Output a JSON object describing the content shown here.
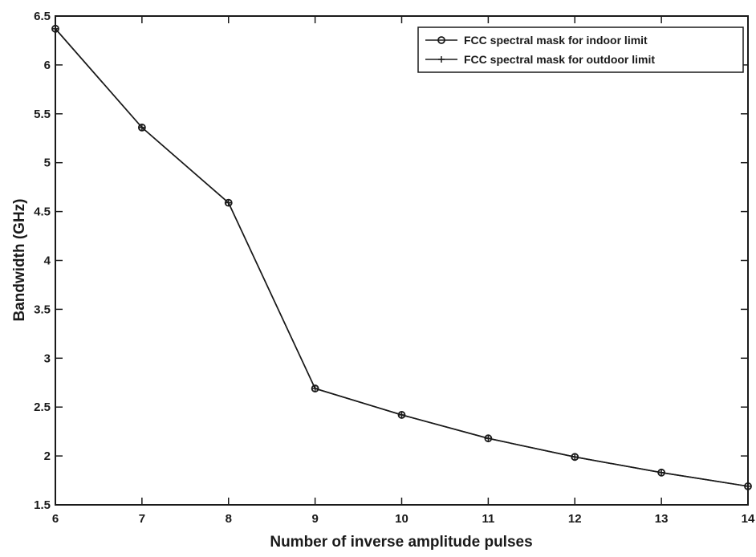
{
  "chart_data": {
    "type": "line",
    "title": "",
    "xlabel": "Number of inverse amplitude pulses",
    "ylabel": "Bandwidth (GHz)",
    "xlim": [
      6,
      14
    ],
    "ylim": [
      1.5,
      6.5
    ],
    "x_ticks": [
      6,
      7,
      8,
      9,
      10,
      11,
      12,
      13,
      14
    ],
    "y_ticks": [
      1.5,
      2,
      2.5,
      3,
      3.5,
      4,
      4.5,
      5,
      5.5,
      6,
      6.5
    ],
    "y_tick_labels": [
      "1.5",
      "2",
      "2.5",
      "3",
      "3.5",
      "4",
      "4.5",
      "5",
      "5.5",
      "6",
      "6.5"
    ],
    "x": [
      6,
      7,
      8,
      9,
      10,
      11,
      12,
      13,
      14
    ],
    "grid": false,
    "legend_position": "top-right",
    "series": [
      {
        "name": "FCC spectral mask for indoor limit",
        "marker": "circle",
        "color": "#1a1a1a",
        "values": [
          6.37,
          5.36,
          4.59,
          2.69,
          2.42,
          2.18,
          1.99,
          1.83,
          1.69
        ]
      },
      {
        "name": "FCC spectral mask for outdoor limit",
        "marker": "plus",
        "color": "#1a1a1a",
        "values": [
          6.37,
          5.36,
          4.59,
          2.69,
          2.42,
          2.18,
          1.99,
          1.83,
          1.69
        ]
      }
    ]
  }
}
